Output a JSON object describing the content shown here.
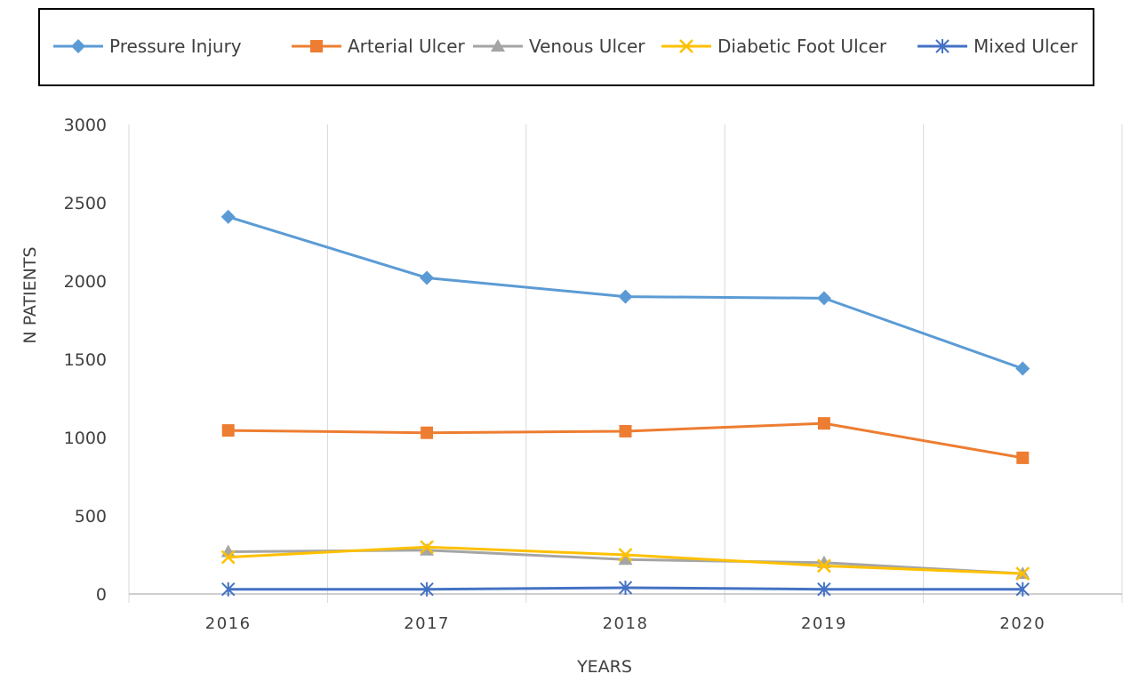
{
  "chart_data": {
    "type": "line",
    "title": "",
    "xlabel": "YEARS",
    "ylabel": "N PATIENTS",
    "categories": [
      "2016",
      "2017",
      "2018",
      "2019",
      "2020"
    ],
    "ylim": [
      0,
      3000
    ],
    "yticks": [
      "0",
      "500",
      "1000",
      "1500",
      "2000",
      "2500",
      "3000"
    ],
    "grid": "vertical",
    "legend_position": "top",
    "series": [
      {
        "name": "Pressure Injury",
        "color": "#5b9bd5",
        "marker": "diamond",
        "values": [
          2410,
          2020,
          1900,
          1890,
          1440
        ]
      },
      {
        "name": "Arterial Ulcer",
        "color": "#ed7d31",
        "marker": "square",
        "values": [
          1045,
          1030,
          1040,
          1090,
          870
        ]
      },
      {
        "name": "Venous Ulcer",
        "color": "#a5a5a5",
        "marker": "triangle",
        "values": [
          270,
          280,
          220,
          200,
          130
        ]
      },
      {
        "name": "Diabetic Foot Ulcer",
        "color": "#ffc000",
        "marker": "x",
        "values": [
          235,
          300,
          250,
          180,
          130
        ]
      },
      {
        "name": "Mixed Ulcer",
        "color": "#4472c4",
        "marker": "star",
        "values": [
          30,
          30,
          40,
          30,
          30
        ]
      }
    ]
  }
}
